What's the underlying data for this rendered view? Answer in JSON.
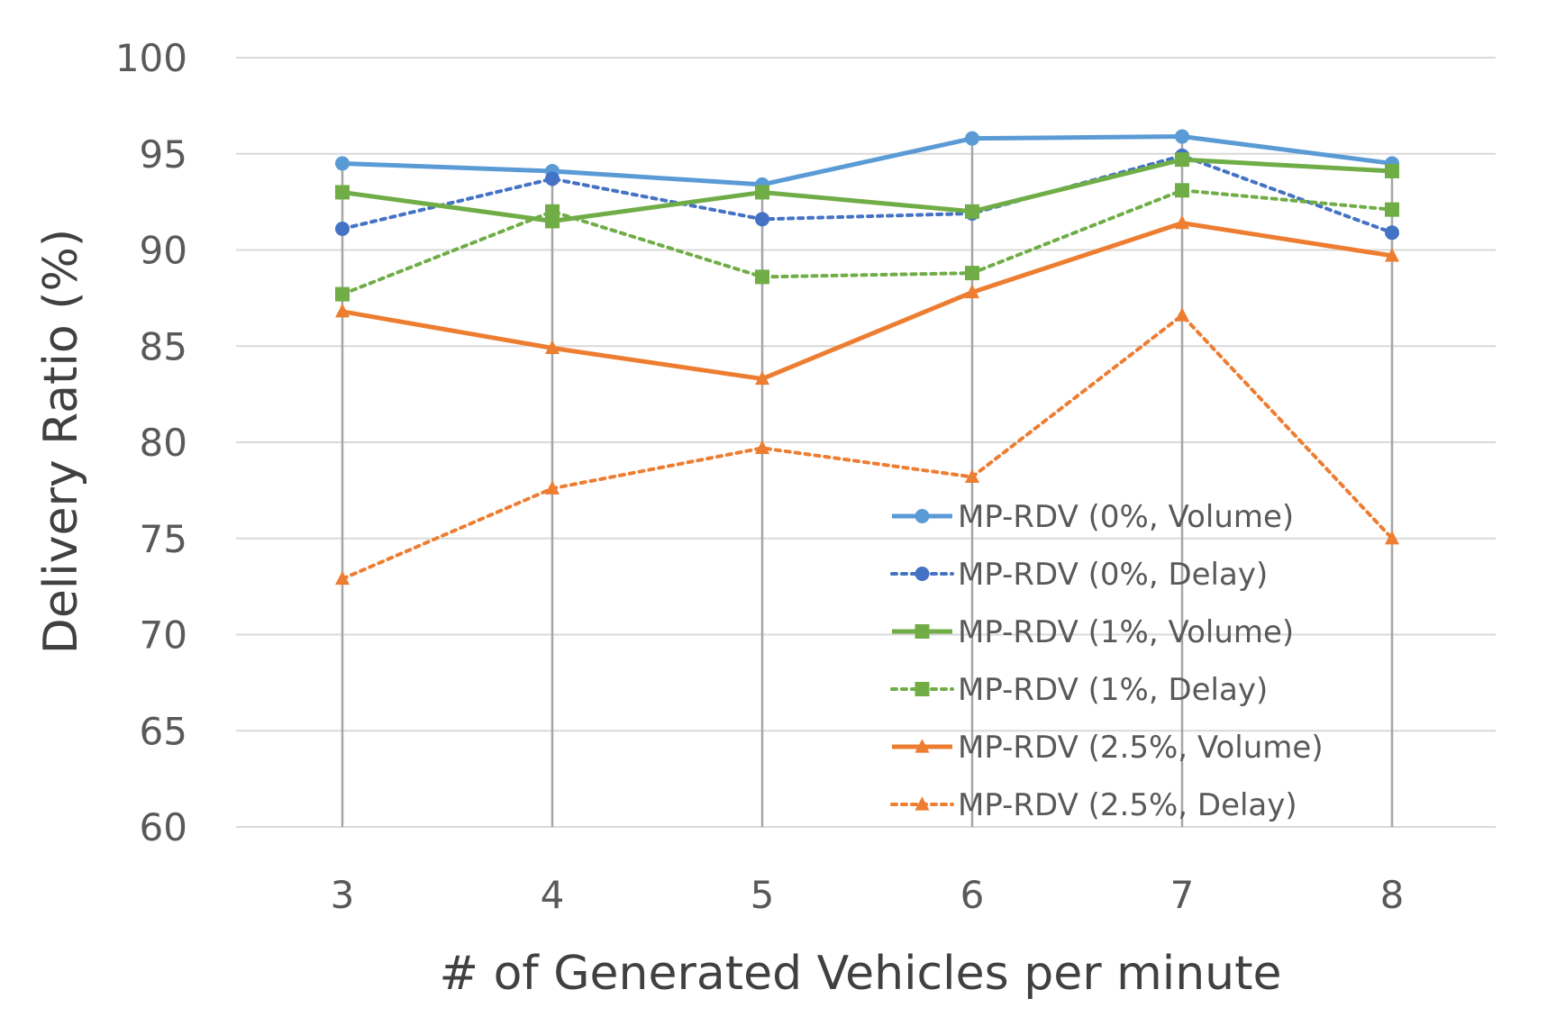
{
  "chart_data": {
    "type": "line",
    "title": "",
    "xlabel": "# of Generated Vehicles per minute",
    "ylabel": "Delivery Ratio (%)",
    "categories": [
      "3",
      "4",
      "5",
      "6",
      "7",
      "8"
    ],
    "ylim": [
      60,
      100
    ],
    "yticks": [
      "60",
      "65",
      "70",
      "75",
      "80",
      "85",
      "90",
      "95",
      "100"
    ],
    "grid": true,
    "legend_position": "bottom-right",
    "series": [
      {
        "name": "MP-RDV (0%, Volume)",
        "values": [
          94.5,
          94.1,
          93.4,
          95.8,
          95.9,
          94.5
        ],
        "color": "#5B9BD5",
        "dash": "solid",
        "marker": "circle"
      },
      {
        "name": "MP-RDV (0%, Delay)",
        "values": [
          91.1,
          93.7,
          91.6,
          91.9,
          94.9,
          90.9
        ],
        "color": "#4472C4",
        "dash": "dotted",
        "marker": "circle"
      },
      {
        "name": "MP-RDV (1%, Volume)",
        "values": [
          93.0,
          91.5,
          93.0,
          92.0,
          94.7,
          94.1
        ],
        "color": "#70AD47",
        "dash": "solid",
        "marker": "square"
      },
      {
        "name": "MP-RDV (1%, Delay)",
        "values": [
          87.7,
          92.0,
          88.6,
          88.8,
          93.1,
          92.1
        ],
        "color": "#70AD47",
        "dash": "dotted",
        "marker": "square"
      },
      {
        "name": "MP-RDV (2.5%, Volume)",
        "values": [
          86.8,
          84.9,
          83.3,
          87.8,
          91.4,
          89.7
        ],
        "color": "#ED7D31",
        "dash": "solid",
        "marker": "triangle"
      },
      {
        "name": "MP-RDV (2.5%, Delay)",
        "values": [
          72.9,
          77.6,
          79.7,
          78.2,
          86.6,
          75.0
        ],
        "color": "#ED7D31",
        "dash": "dotted",
        "marker": "triangle"
      }
    ]
  }
}
